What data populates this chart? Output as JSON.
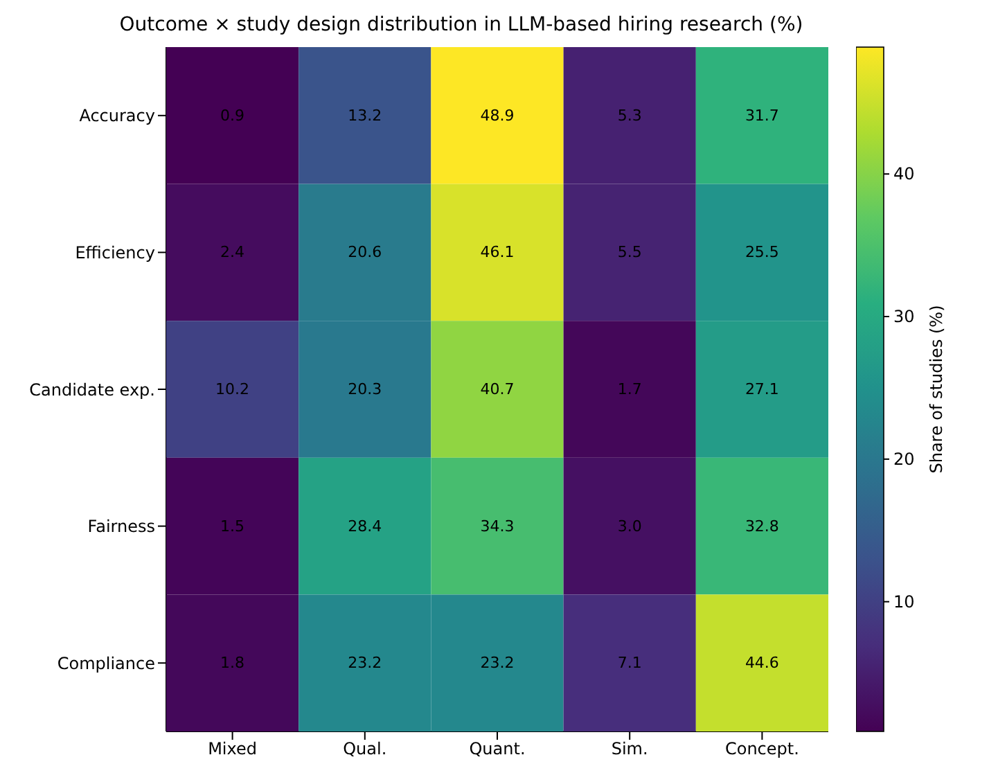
{
  "chart_data": {
    "type": "heatmap",
    "title": "Outcome × study design distribution in LLM-based hiring research (%)",
    "categories": [
      "Mixed",
      "Qual.",
      "Quant.",
      "Sim.",
      "Concept."
    ],
    "y_categories": [
      "Accuracy",
      "Efficiency",
      "Candidate exp.",
      "Fairness",
      "Compliance"
    ],
    "cells": [
      [
        0.9,
        13.2,
        48.9,
        5.3,
        31.7
      ],
      [
        2.4,
        20.6,
        46.1,
        5.5,
        25.5
      ],
      [
        10.2,
        20.3,
        40.7,
        1.7,
        27.1
      ],
      [
        1.5,
        28.4,
        34.3,
        3.0,
        32.8
      ],
      [
        1.8,
        23.2,
        23.2,
        7.1,
        44.6
      ]
    ],
    "cell_labels": [
      [
        "0.9",
        "13.2",
        "48.9",
        "5.3",
        "31.7"
      ],
      [
        "2.4",
        "20.6",
        "46.1",
        "5.5",
        "25.5"
      ],
      [
        "10.2",
        "20.3",
        "40.7",
        "1.7",
        "27.1"
      ],
      [
        "1.5",
        "28.4",
        "34.3",
        "3.0",
        "32.8"
      ],
      [
        "1.8",
        "23.2",
        "23.2",
        "7.1",
        "44.6"
      ]
    ],
    "clabel": "Share of studies (%)",
    "clim": [
      0.9,
      48.9
    ],
    "cticks": [
      10,
      20,
      30,
      40
    ]
  }
}
